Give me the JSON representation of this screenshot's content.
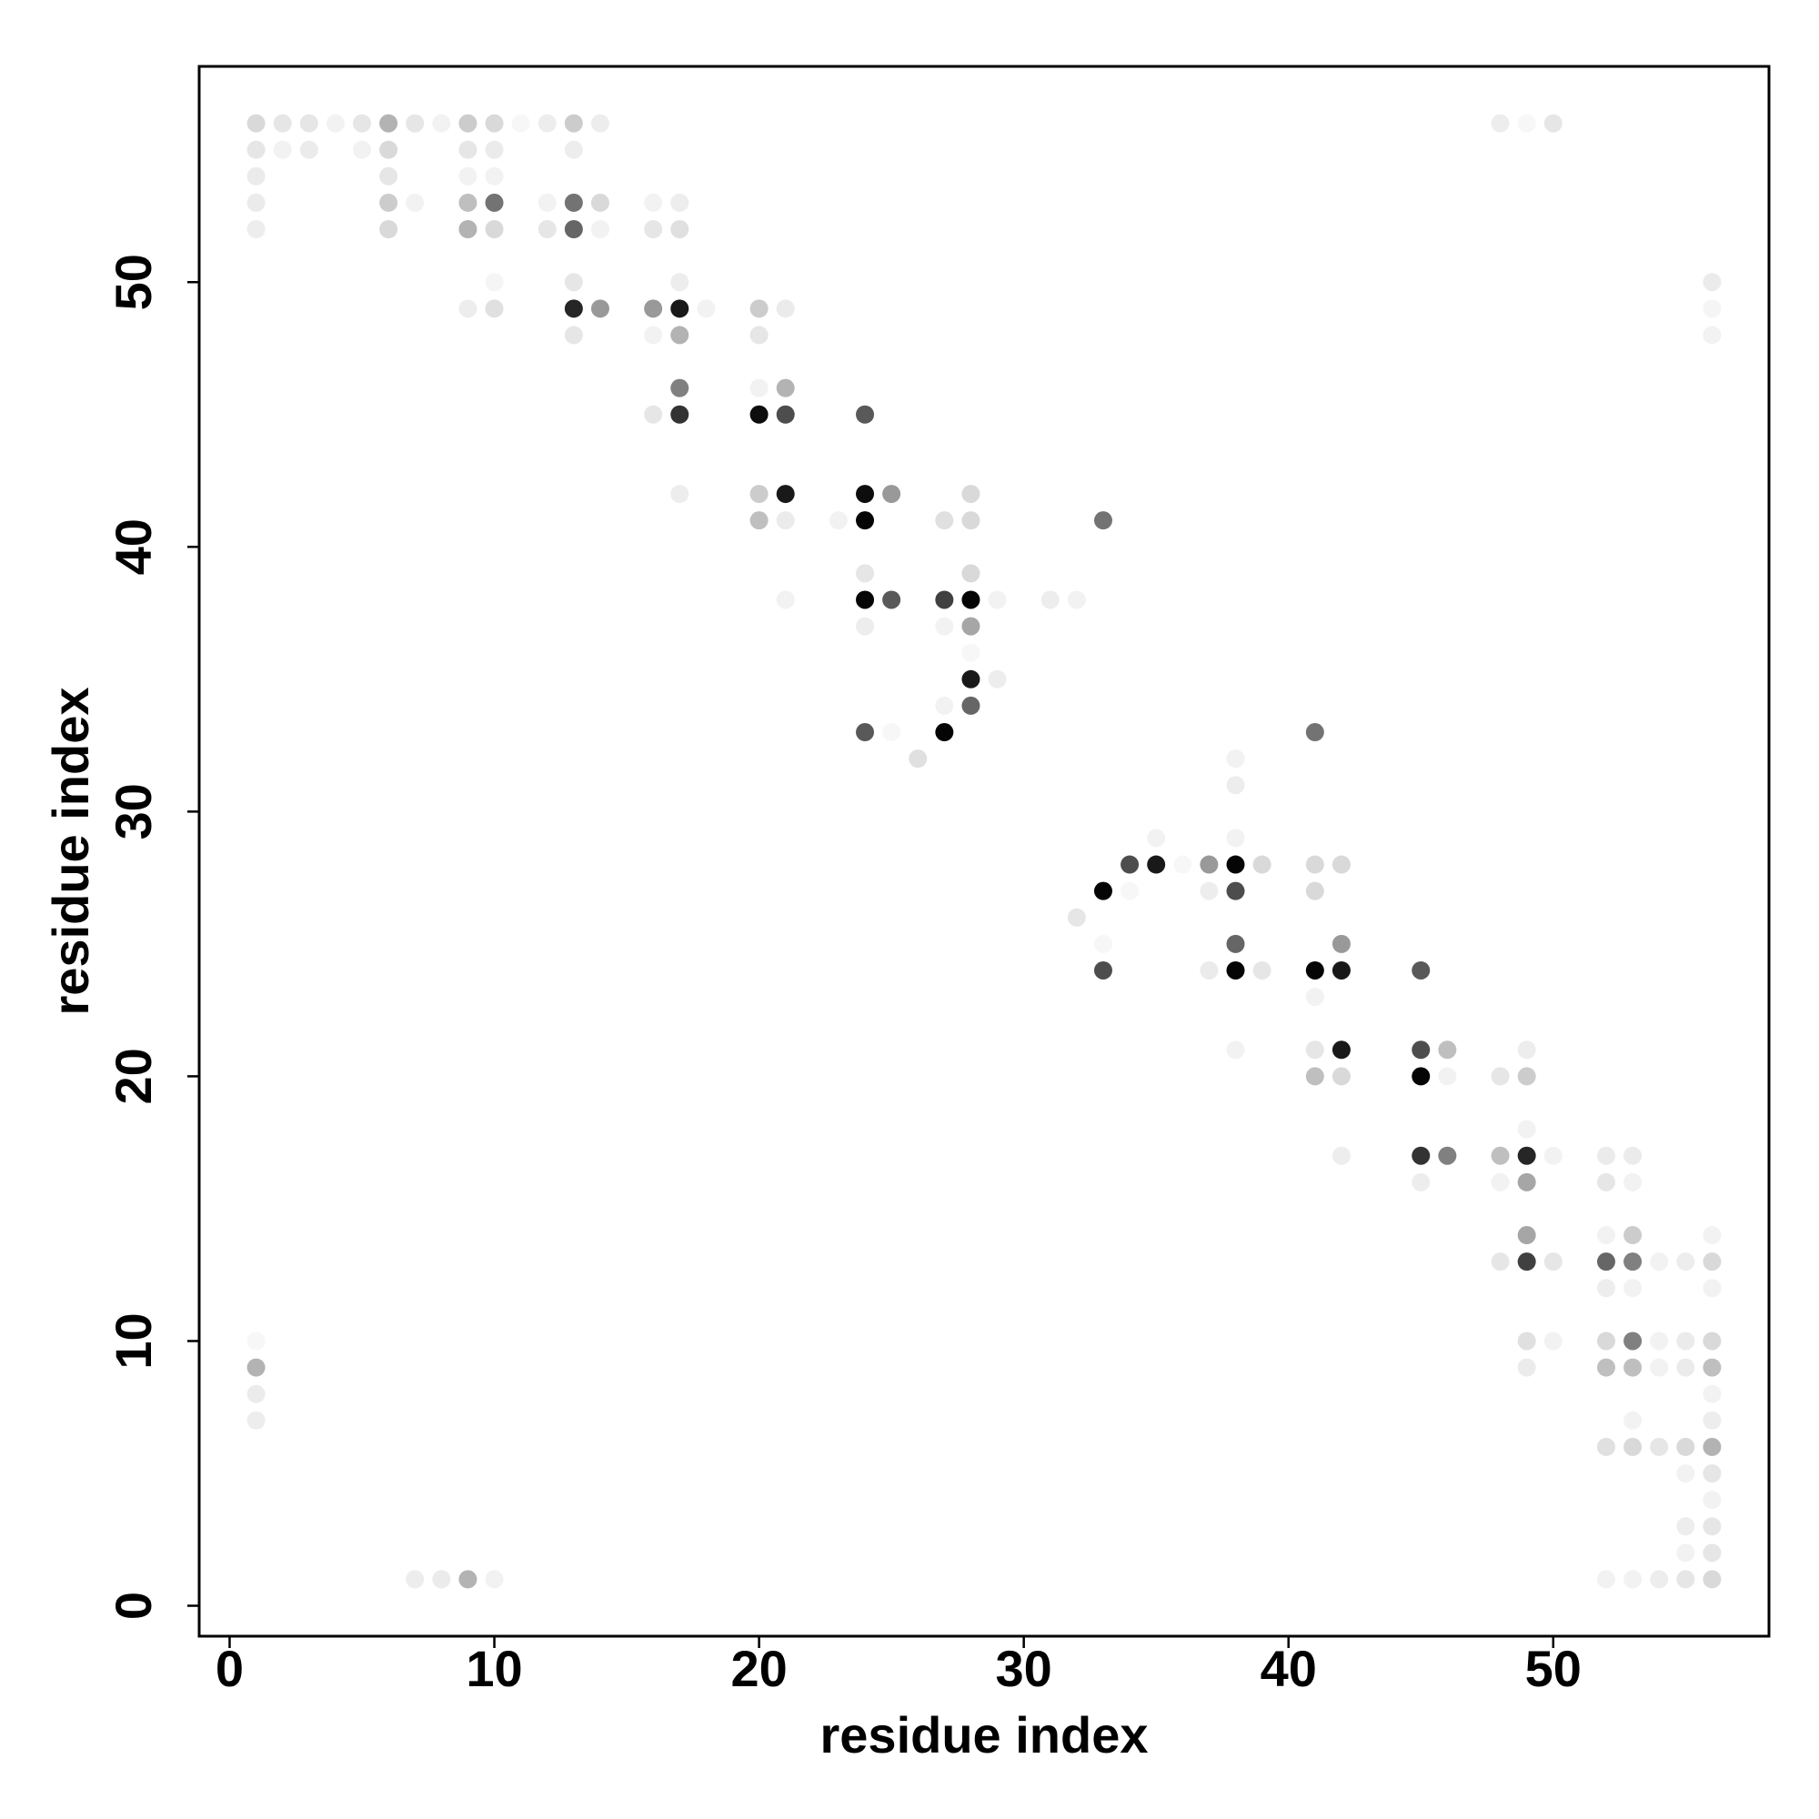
{
  "chart_data": {
    "type": "scatter",
    "x_label": "residue index",
    "y_label": "residue index",
    "xlim": [
      -1.15,
      58.15
    ],
    "ylim": [
      -1.15,
      58.15
    ],
    "xticks": [
      0,
      10,
      20,
      30,
      40,
      50
    ],
    "yticks": [
      0,
      10,
      20,
      30,
      40,
      50
    ],
    "color": "#000000",
    "x": [
      1,
      2,
      3,
      4,
      5,
      6,
      7,
      8,
      9,
      10,
      11,
      12,
      13,
      14,
      48,
      49,
      50,
      1,
      2,
      3,
      5,
      6,
      9,
      10,
      13,
      1,
      6,
      9,
      10,
      1,
      6,
      7,
      9,
      10,
      12,
      13,
      14,
      16,
      17,
      1,
      6,
      9,
      10,
      12,
      13,
      14,
      16,
      17,
      10,
      13,
      17,
      56,
      9,
      10,
      13,
      14,
      16,
      17,
      18,
      20,
      21,
      56,
      13,
      16,
      17,
      20,
      56,
      17,
      20,
      21,
      16,
      17,
      20,
      21,
      24,
      17,
      20,
      21,
      24,
      25,
      28,
      20,
      21,
      23,
      24,
      27,
      28,
      33,
      24,
      28,
      21,
      24,
      25,
      27,
      28,
      29,
      31,
      32,
      24,
      27,
      28,
      28,
      28,
      29,
      27,
      28,
      24,
      25,
      27,
      41,
      26,
      38,
      38,
      35,
      38,
      34,
      35,
      36,
      37,
      38,
      39,
      41,
      42,
      33,
      34,
      37,
      38,
      41,
      32,
      33,
      38,
      42,
      33,
      37,
      38,
      39,
      41,
      42,
      45,
      41,
      38,
      41,
      42,
      45,
      46,
      49,
      41,
      42,
      45,
      46,
      48,
      49,
      49,
      42,
      45,
      46,
      48,
      49,
      50,
      52,
      53,
      45,
      48,
      49,
      52,
      53,
      49,
      52,
      53,
      56,
      48,
      49,
      50,
      52,
      53,
      54,
      55,
      56,
      52,
      53,
      56,
      1,
      49,
      50,
      52,
      53,
      54,
      55,
      56,
      1,
      49,
      52,
      53,
      54,
      55,
      56,
      1,
      56,
      1,
      53,
      56,
      52,
      53,
      54,
      55,
      56,
      55,
      56,
      56,
      55,
      56,
      55,
      56,
      7,
      8,
      9,
      10,
      52,
      53,
      54,
      55,
      56
    ],
    "y": [
      56,
      56,
      56,
      56,
      56,
      56,
      56,
      56,
      56,
      56,
      56,
      56,
      56,
      56,
      56,
      56,
      56,
      55,
      55,
      55,
      55,
      55,
      55,
      55,
      55,
      54,
      54,
      54,
      54,
      53,
      53,
      53,
      53,
      53,
      53,
      53,
      53,
      53,
      53,
      52,
      52,
      52,
      52,
      52,
      52,
      52,
      52,
      52,
      50,
      50,
      50,
      50,
      49,
      49,
      49,
      49,
      49,
      49,
      49,
      49,
      49,
      49,
      48,
      48,
      48,
      48,
      48,
      46,
      46,
      46,
      45,
      45,
      45,
      45,
      45,
      42,
      42,
      42,
      42,
      42,
      42,
      41,
      41,
      41,
      41,
      41,
      41,
      41,
      39,
      39,
      38,
      38,
      38,
      38,
      38,
      38,
      38,
      38,
      37,
      37,
      37,
      36,
      35,
      35,
      34,
      34,
      33,
      33,
      33,
      33,
      32,
      32,
      31,
      29,
      29,
      28,
      28,
      28,
      28,
      28,
      28,
      28,
      28,
      27,
      27,
      27,
      27,
      27,
      26,
      25,
      25,
      25,
      24,
      24,
      24,
      24,
      24,
      24,
      24,
      23,
      21,
      21,
      21,
      21,
      21,
      21,
      20,
      20,
      20,
      20,
      20,
      20,
      18,
      17,
      17,
      17,
      17,
      17,
      17,
      17,
      17,
      16,
      16,
      16,
      16,
      16,
      14,
      14,
      14,
      14,
      13,
      13,
      13,
      13,
      13,
      13,
      13,
      13,
      12,
      12,
      12,
      10,
      10,
      10,
      10,
      10,
      10,
      10,
      10,
      9,
      9,
      9,
      9,
      9,
      9,
      9,
      8,
      8,
      7,
      7,
      7,
      6,
      6,
      6,
      6,
      6,
      5,
      5,
      4,
      3,
      3,
      2,
      2,
      1,
      1,
      1,
      1,
      1,
      1,
      1,
      1,
      1
    ],
    "values": [
      0.15,
      0.1,
      0.1,
      0.05,
      0.1,
      0.3,
      0.1,
      0.05,
      0.2,
      0.15,
      0.03,
      0.07,
      0.2,
      0.07,
      0.07,
      0.03,
      0.1,
      0.1,
      0.05,
      0.08,
      0.05,
      0.15,
      0.1,
      0.08,
      0.07,
      0.08,
      0.1,
      0.05,
      0.05,
      0.08,
      0.2,
      0.05,
      0.25,
      0.55,
      0.05,
      0.55,
      0.15,
      0.05,
      0.07,
      0.07,
      0.15,
      0.3,
      0.15,
      0.1,
      0.6,
      0.05,
      0.1,
      0.12,
      0.04,
      0.1,
      0.07,
      0.08,
      0.07,
      0.12,
      0.85,
      0.4,
      0.4,
      0.9,
      0.05,
      0.2,
      0.08,
      0.04,
      0.1,
      0.05,
      0.3,
      0.1,
      0.05,
      0.5,
      0.05,
      0.3,
      0.1,
      0.8,
      0.95,
      0.7,
      0.65,
      0.07,
      0.2,
      0.9,
      0.95,
      0.4,
      0.15,
      0.25,
      0.08,
      0.05,
      0.98,
      0.12,
      0.15,
      0.55,
      0.1,
      0.15,
      0.05,
      0.98,
      0.65,
      0.75,
      0.98,
      0.05,
      0.07,
      0.05,
      0.07,
      0.05,
      0.35,
      0.03,
      0.9,
      0.07,
      0.05,
      0.6,
      0.65,
      0.03,
      0.98,
      0.55,
      0.12,
      0.05,
      0.07,
      0.05,
      0.05,
      0.7,
      0.9,
      0.03,
      0.4,
      0.98,
      0.15,
      0.15,
      0.15,
      0.98,
      0.03,
      0.07,
      0.7,
      0.15,
      0.1,
      0.03,
      0.6,
      0.4,
      0.7,
      0.08,
      0.98,
      0.1,
      0.98,
      0.9,
      0.65,
      0.05,
      0.05,
      0.1,
      0.9,
      0.7,
      0.25,
      0.07,
      0.25,
      0.15,
      0.98,
      0.05,
      0.1,
      0.2,
      0.05,
      0.07,
      0.8,
      0.5,
      0.25,
      0.85,
      0.05,
      0.08,
      0.08,
      0.07,
      0.05,
      0.35,
      0.1,
      0.05,
      0.35,
      0.05,
      0.2,
      0.05,
      0.1,
      0.75,
      0.1,
      0.6,
      0.5,
      0.05,
      0.07,
      0.15,
      0.07,
      0.05,
      0.05,
      0.03,
      0.12,
      0.05,
      0.15,
      0.5,
      0.05,
      0.08,
      0.15,
      0.3,
      0.08,
      0.25,
      0.25,
      0.05,
      0.08,
      0.25,
      0.08,
      0.05,
      0.07,
      0.05,
      0.07,
      0.12,
      0.15,
      0.1,
      0.15,
      0.3,
      0.05,
      0.1,
      0.05,
      0.07,
      0.1,
      0.05,
      0.1,
      0.07,
      0.08,
      0.3,
      0.05,
      0.05,
      0.05,
      0.07,
      0.1,
      0.15
    ]
  }
}
